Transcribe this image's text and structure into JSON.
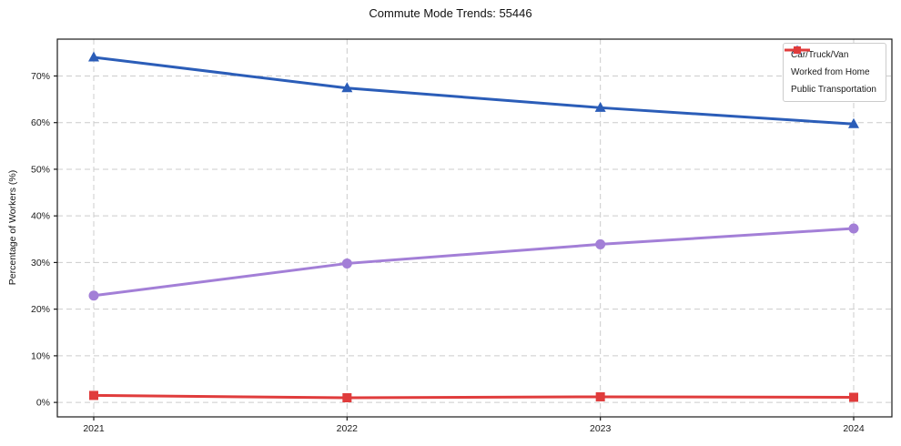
{
  "chart_data": {
    "type": "line",
    "title": "Commute Mode Trends: 55446",
    "xlabel": "",
    "ylabel": "Percentage of Workers (%)",
    "x": [
      2021,
      2022,
      2023,
      2024
    ],
    "xtick_labels": [
      "2021",
      "2022",
      "2023",
      "2024"
    ],
    "yticks": [
      0,
      10,
      20,
      30,
      40,
      50,
      60,
      70
    ],
    "ytick_labels": [
      "0%",
      "10%",
      "20%",
      "30%",
      "40%",
      "50%",
      "60%",
      "70%"
    ],
    "ylim": [
      -3.1,
      77.9
    ],
    "grid": true,
    "grid_style": "dashed",
    "legend_position": "top-right",
    "series": [
      {
        "name": "Car/Truck/Van",
        "values": [
          74.0,
          67.4,
          63.2,
          59.7
        ],
        "color": "#2b5db8",
        "marker": "triangle"
      },
      {
        "name": "Worked from Home",
        "values": [
          22.9,
          29.8,
          33.9,
          37.3
        ],
        "color": "#a37fd7",
        "marker": "circle"
      },
      {
        "name": "Public Transportation",
        "values": [
          1.5,
          1.0,
          1.2,
          1.1
        ],
        "color": "#e03c3c",
        "marker": "square"
      }
    ]
  },
  "colors": {
    "grid": "#cccccc",
    "axis_frame": "#1a1a1a",
    "tick_text": "#1a1a1a",
    "background": "#ffffff"
  }
}
